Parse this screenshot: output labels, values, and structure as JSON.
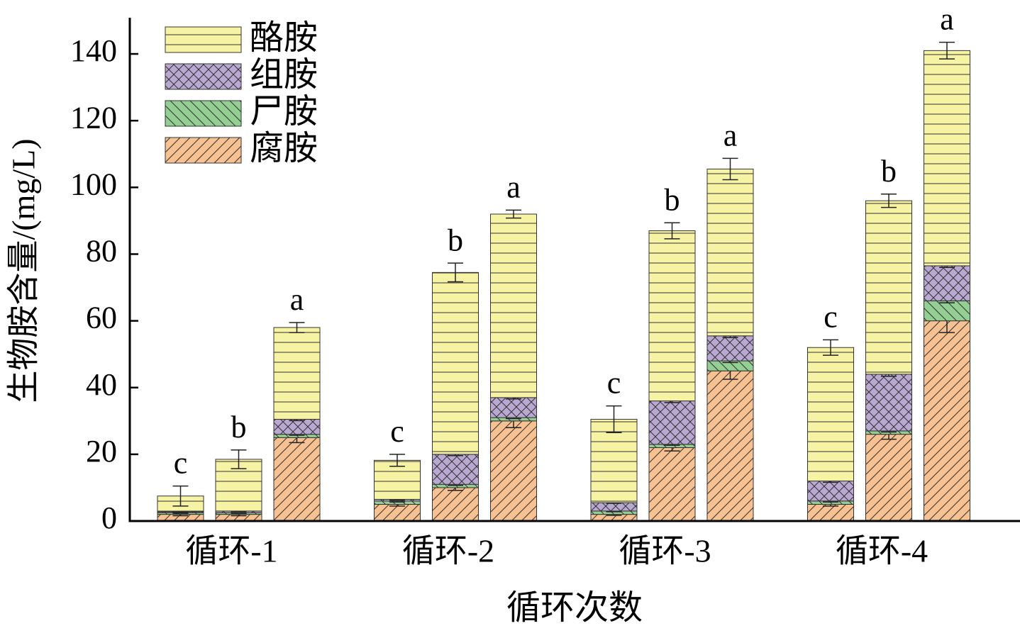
{
  "chart_data": {
    "type": "stacked_bar",
    "x_label": "循环次数",
    "y_label": "生物胺含量/(mg/L)",
    "categories": [
      null,
      "循环-1",
      null,
      null,
      "循环-2",
      null,
      null,
      "循环-3",
      null,
      null,
      "循环-4",
      null
    ],
    "group_size": 3,
    "series": [
      {
        "name": "腐胺",
        "color": "#f8c191",
        "hatch": "/",
        "values": [
          2,
          2,
          25,
          5,
          10,
          30,
          2,
          22,
          45,
          5,
          26,
          60
        ],
        "errors": [
          0.4,
          0.4,
          1.5,
          0.5,
          0.8,
          2,
          0.3,
          1,
          2.5,
          0.5,
          1.5,
          3.5
        ]
      },
      {
        "name": "尸胺",
        "color": "#93ce93",
        "hatch": "\\",
        "values": [
          0.5,
          0.5,
          1,
          1,
          1,
          1,
          1,
          1,
          3,
          1,
          1,
          6
        ],
        "errors": [
          0.2,
          0.2,
          0.3,
          0.3,
          0.3,
          0.3,
          0.2,
          0.3,
          0.5,
          0.3,
          0.3,
          0.6
        ]
      },
      {
        "name": "组胺",
        "color": "#b9a9d2",
        "hatch": "x",
        "values": [
          0.3,
          0.5,
          4.5,
          0.5,
          9,
          6,
          2.5,
          13,
          7.5,
          6,
          17,
          10.5
        ],
        "errors": [
          0.2,
          0.2,
          0.4,
          0.2,
          0.4,
          0.4,
          0.2,
          0.5,
          0.5,
          0.4,
          0.6,
          0.5
        ]
      },
      {
        "name": "酪胺",
        "color": "#f7f3a5",
        "hatch": "-",
        "values": [
          4.7,
          15.5,
          27.5,
          11.7,
          54.5,
          55,
          25,
          51,
          50,
          40,
          52,
          64.5
        ],
        "errors": [
          3,
          2.8,
          1.5,
          1.8,
          2.8,
          1.2,
          4,
          2.4,
          3.2,
          2.3,
          2,
          2.5
        ]
      }
    ],
    "annotations": [
      "c",
      "b",
      "a",
      "c",
      "b",
      "a",
      "c",
      "b",
      "a",
      "c",
      "b",
      "a"
    ],
    "ylim": [
      0,
      150
    ],
    "yticks": [
      0,
      20,
      40,
      60,
      80,
      100,
      120,
      140
    ],
    "legend": "upper-left"
  }
}
